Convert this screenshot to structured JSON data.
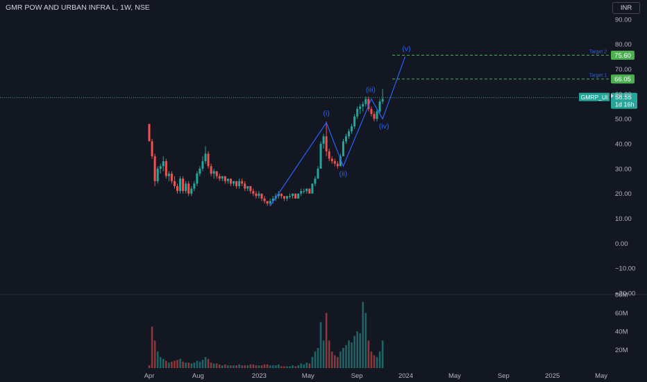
{
  "header": {
    "title": "GMR POW AND URBAN INFRA L, 1W, NSE",
    "currency_button": "INR"
  },
  "price_tag": {
    "symbol": "GMRP_UI",
    "price": "58.55",
    "countdown": "1d 16h"
  },
  "colors": {
    "background": "#131722",
    "up": "#26a69a",
    "down": "#ef5350",
    "wave": "#2962ff",
    "target": "#4caf50",
    "grid": "#2a2e39",
    "text": "#b2b5be"
  },
  "chart_data": {
    "type": "candlestick",
    "price_axis": {
      "ylim": [
        -20,
        95
      ],
      "ticks": [
        "90.00",
        "80.00",
        "70.00",
        "60.00",
        "50.00",
        "40.00",
        "30.00",
        "20.00",
        "10.00",
        "0.00",
        "−10.00",
        "−20.00"
      ],
      "tick_values": [
        90,
        80,
        70,
        60,
        50,
        40,
        30,
        20,
        10,
        0,
        -10,
        -20
      ]
    },
    "volume_axis": {
      "ylim": [
        0,
        80
      ],
      "ticks": [
        "80M",
        "60M",
        "40M",
        "20M"
      ],
      "tick_values": [
        80,
        60,
        40,
        20
      ]
    },
    "time_axis": {
      "labels": [
        "Apr",
        "Aug",
        "2023",
        "May",
        "Sep",
        "2024",
        "May",
        "Sep",
        "2025",
        "May"
      ],
      "months_from_start": [
        0,
        4,
        9,
        13,
        17,
        21,
        25,
        29,
        33,
        37
      ]
    },
    "last_price_line": 58.55,
    "targets": [
      {
        "label": "Target 1",
        "value": "66.05",
        "price": 66.05
      },
      {
        "label": "Target 2",
        "value": "75.60",
        "price": 75.6
      }
    ],
    "elliott_wave": [
      {
        "label": "",
        "week": 43,
        "price": 15
      },
      {
        "label": "(i)",
        "week": 63,
        "price": 48.5
      },
      {
        "label": "(ii)",
        "week": 69,
        "price": 31
      },
      {
        "label": "(iii)",
        "week": 79,
        "price": 58
      },
      {
        "label": "(iv)",
        "week": 83,
        "price": 50
      },
      {
        "label": "(v)",
        "week": 91,
        "price": 75
      }
    ],
    "candles": [
      [
        48,
        48,
        41,
        41,
        3
      ],
      [
        41,
        42,
        34,
        35,
        45
      ],
      [
        35,
        36,
        23,
        25,
        30
      ],
      [
        25,
        31,
        24,
        30,
        18
      ],
      [
        30,
        32,
        28,
        31,
        12
      ],
      [
        31,
        35,
        29,
        33,
        10
      ],
      [
        33,
        34,
        26,
        27,
        8
      ],
      [
        27,
        29,
        25,
        28,
        6
      ],
      [
        28,
        29,
        24,
        25,
        7
      ],
      [
        25,
        27,
        22,
        23,
        8
      ],
      [
        23,
        24,
        20,
        21,
        9
      ],
      [
        21,
        27,
        20,
        26,
        10
      ],
      [
        26,
        27,
        20,
        21,
        7
      ],
      [
        21,
        25,
        20,
        24,
        6
      ],
      [
        24,
        25,
        19,
        20,
        6
      ],
      [
        20,
        23,
        19,
        22,
        5
      ],
      [
        22,
        25,
        21,
        24,
        6
      ],
      [
        24,
        29,
        23,
        28,
        8
      ],
      [
        28,
        31,
        27,
        30,
        7
      ],
      [
        30,
        35,
        29,
        33,
        9
      ],
      [
        33,
        39,
        32,
        36,
        12
      ],
      [
        36,
        37,
        30,
        31,
        10
      ],
      [
        31,
        32,
        27,
        28,
        6
      ],
      [
        28,
        30,
        26,
        29,
        5
      ],
      [
        29,
        29,
        26,
        27,
        5
      ],
      [
        27,
        28,
        25,
        26,
        4
      ],
      [
        26,
        27,
        25,
        27,
        3
      ],
      [
        27,
        27,
        24,
        25,
        4
      ],
      [
        25,
        26,
        24,
        26,
        3
      ],
      [
        26,
        26,
        23,
        24,
        3
      ],
      [
        24,
        25,
        23,
        25,
        3
      ],
      [
        25,
        25,
        22,
        23,
        3
      ],
      [
        23,
        26,
        22,
        25,
        4
      ],
      [
        25,
        26,
        23,
        24,
        3
      ],
      [
        24,
        25,
        21,
        22,
        3
      ],
      [
        22,
        23,
        21,
        23,
        3
      ],
      [
        23,
        23,
        20,
        21,
        4
      ],
      [
        21,
        22,
        19,
        20,
        4
      ],
      [
        20,
        21,
        18,
        19,
        3
      ],
      [
        19,
        21,
        18,
        20,
        3
      ],
      [
        20,
        20,
        17,
        18,
        3
      ],
      [
        18,
        19,
        16,
        17,
        4
      ],
      [
        17,
        17,
        15,
        16,
        4
      ],
      [
        16,
        18,
        15,
        17,
        3
      ],
      [
        17,
        19,
        16,
        18,
        3
      ],
      [
        18,
        20,
        17,
        19,
        3
      ],
      [
        19,
        21,
        18,
        20,
        4
      ],
      [
        20,
        20,
        18,
        19,
        2
      ],
      [
        19,
        19,
        17,
        18,
        2
      ],
      [
        18,
        19,
        17,
        19,
        2
      ],
      [
        19,
        20,
        18,
        19,
        2
      ],
      [
        19,
        20,
        18,
        20,
        3
      ],
      [
        20,
        20,
        18,
        18,
        2
      ],
      [
        18,
        20,
        18,
        20,
        3
      ],
      [
        20,
        22,
        19,
        21,
        5
      ],
      [
        21,
        22,
        20,
        21,
        4
      ],
      [
        21,
        22,
        20,
        22,
        6
      ],
      [
        22,
        22,
        20,
        20,
        5
      ],
      [
        20,
        24,
        20,
        24,
        12
      ],
      [
        24,
        27,
        23,
        26,
        18
      ],
      [
        26,
        31,
        26,
        30,
        22
      ],
      [
        30,
        41,
        30,
        40,
        50
      ],
      [
        40,
        44,
        38,
        43,
        30
      ],
      [
        43,
        49,
        35,
        37,
        60
      ],
      [
        37,
        38,
        33,
        34,
        30
      ],
      [
        34,
        35,
        32,
        33,
        18
      ],
      [
        33,
        34,
        31,
        32,
        14
      ],
      [
        32,
        33,
        30,
        31,
        12
      ],
      [
        31,
        36,
        31,
        35,
        18
      ],
      [
        35,
        42,
        35,
        41,
        22
      ],
      [
        41,
        44,
        40,
        43,
        25
      ],
      [
        43,
        46,
        42,
        45,
        30
      ],
      [
        45,
        48,
        44,
        47,
        28
      ],
      [
        47,
        52,
        46,
        51,
        35
      ],
      [
        51,
        55,
        50,
        54,
        40
      ],
      [
        54,
        56,
        52,
        55,
        38
      ],
      [
        55,
        57,
        53,
        56,
        72
      ],
      [
        56,
        59,
        55,
        58,
        60
      ],
      [
        58,
        59,
        53,
        54,
        30
      ],
      [
        54,
        55,
        51,
        52,
        18
      ],
      [
        52,
        53,
        49,
        50,
        14
      ],
      [
        50,
        54,
        49,
        53,
        12
      ],
      [
        53,
        58,
        52,
        57,
        18
      ],
      [
        57,
        62,
        56,
        58,
        30
      ]
    ]
  }
}
